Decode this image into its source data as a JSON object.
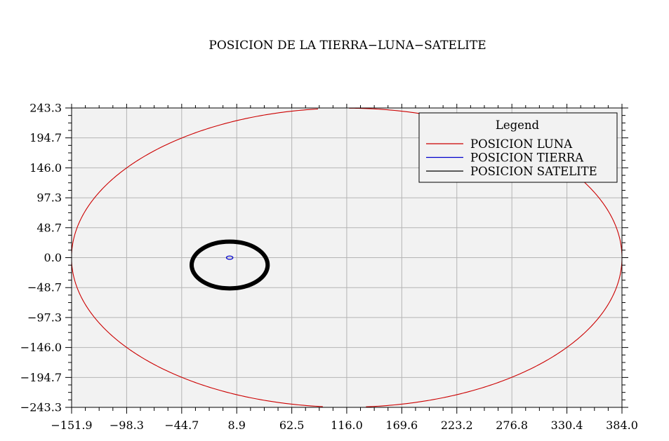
{
  "chart_data": {
    "type": "line",
    "title": "POSICION DE LA TIERRA−LUNA−SATELITE",
    "xlim": [
      -151.9,
      384.0
    ],
    "ylim": [
      -243.3,
      243.3
    ],
    "x_ticks": [
      "−151.9",
      "−98.3",
      "−44.7",
      "8.9",
      "62.5",
      "116.0",
      "169.6",
      "223.2",
      "276.8",
      "330.4",
      "384.0"
    ],
    "x_tick_values": [
      -151.9,
      -98.3,
      -44.7,
      8.9,
      62.5,
      116.0,
      169.6,
      223.2,
      276.8,
      330.4,
      384.0
    ],
    "y_ticks": [
      "243.3",
      "194.7",
      "146.0",
      "97.3",
      "48.7",
      "0.0",
      "−48.7",
      "−97.3",
      "−146.0",
      "−194.7",
      "−243.3"
    ],
    "y_tick_values": [
      243.3,
      194.7,
      146.0,
      97.3,
      48.7,
      0.0,
      -48.7,
      -97.3,
      -146.0,
      -194.7,
      -243.3
    ],
    "grid": true,
    "background": "#f2f2f2",
    "grid_color": "#b4b4b4",
    "legend": {
      "title": "Legend",
      "position": "top-right",
      "entries": [
        "POSICION LUNA",
        "POSICION TIERRA",
        "POSICION SATELITE"
      ]
    },
    "series": [
      {
        "name": "POSICION LUNA",
        "color": "#cc0000",
        "shape": "ellipse",
        "center": [
          116.0,
          0.0
        ],
        "radii": [
          268.0,
          243.0
        ],
        "gaps_x": [
          [
            88.0,
            118.0
          ],
          [
            93.0,
            133.0
          ]
        ]
      },
      {
        "name": "POSICION TIERRA",
        "color": "#0000cc",
        "shape": "ellipse",
        "center": [
          2.0,
          0.0
        ],
        "radii": [
          2.5,
          2.0
        ]
      },
      {
        "name": "POSICION SATELITE",
        "color": "#000000",
        "shape": "ring",
        "center": [
          2.0,
          -12.0
        ],
        "radii": [
          37.0,
          38.0
        ],
        "thickness": 4.5
      }
    ]
  }
}
